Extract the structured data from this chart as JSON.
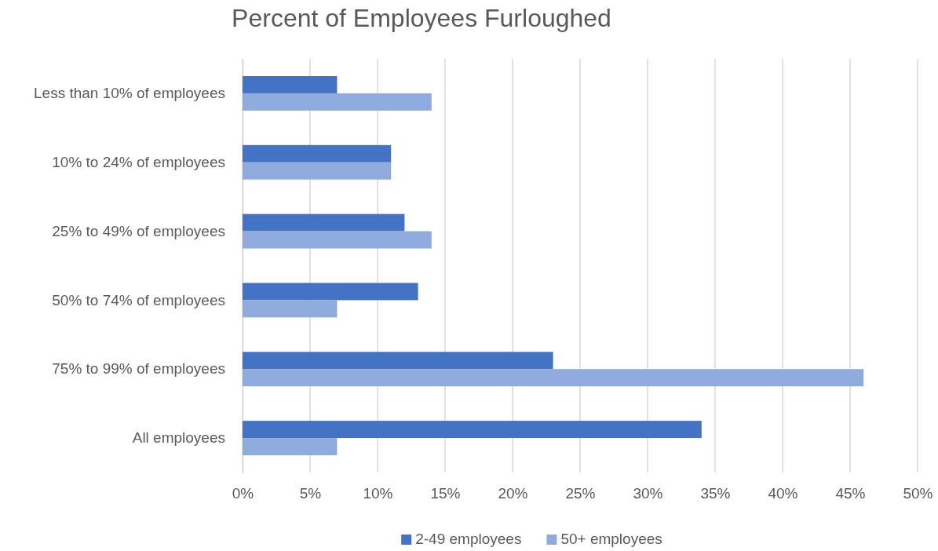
{
  "chart_data": {
    "type": "bar",
    "orientation": "horizontal",
    "title": "Percent of Employees Furloughed",
    "categories": [
      "Less than 10% of employees",
      "10% to 24% of employees",
      "25% to 49% of employees",
      "50% to 74% of employees",
      "75% to 99% of employees",
      "All employees"
    ],
    "series": [
      {
        "name": "2-49 employees",
        "color": "#4472c4",
        "values": [
          7,
          11,
          12,
          13,
          23,
          34
        ]
      },
      {
        "name": "50+ employees",
        "color": "#8faadc",
        "values": [
          14,
          11,
          14,
          7,
          46,
          7
        ]
      }
    ],
    "xlim": [
      0,
      50
    ],
    "xticks": [
      {
        "value": 0,
        "label": "0%"
      },
      {
        "value": 5,
        "label": "5%"
      },
      {
        "value": 10,
        "label": "10%"
      },
      {
        "value": 15,
        "label": "15%"
      },
      {
        "value": 20,
        "label": "20%"
      },
      {
        "value": 25,
        "label": "25%"
      },
      {
        "value": 30,
        "label": "30%"
      },
      {
        "value": 35,
        "label": "35%"
      },
      {
        "value": 40,
        "label": "40%"
      },
      {
        "value": 45,
        "label": "45%"
      },
      {
        "value": 50,
        "label": "50%"
      }
    ],
    "grid": "x",
    "legend": "bottom"
  }
}
